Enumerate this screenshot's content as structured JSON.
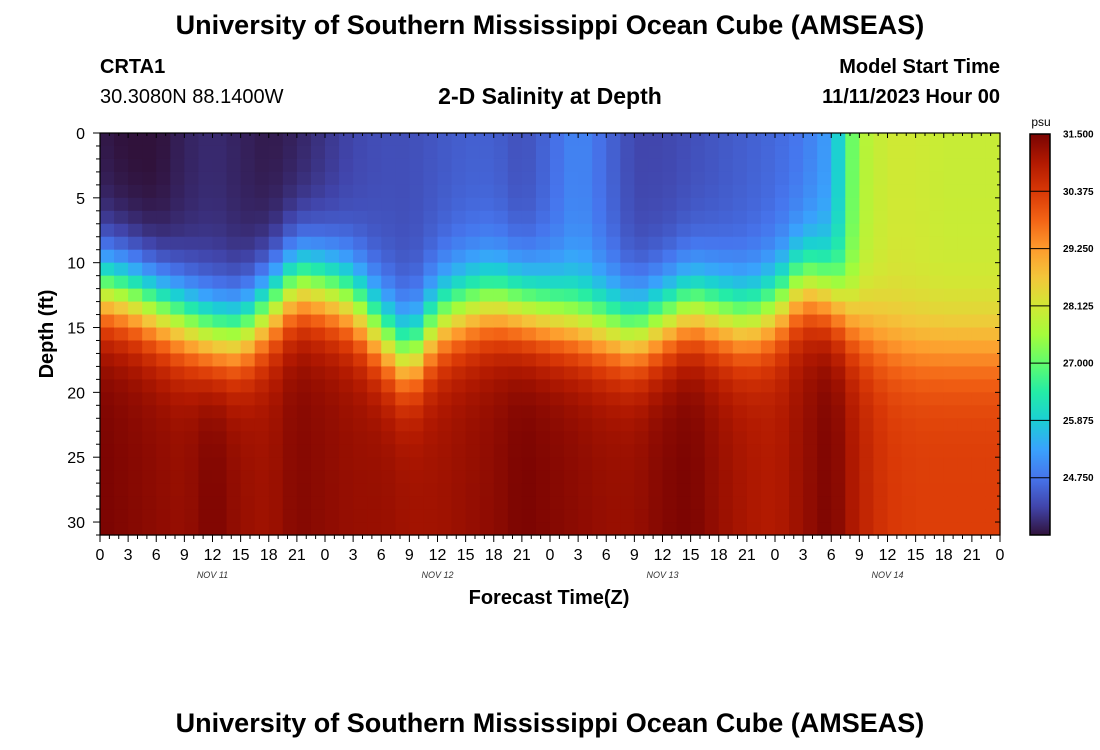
{
  "header": {
    "title": "University of Southern Mississippi Ocean Cube (AMSEAS)",
    "station_id": "CRTA1",
    "station_coords": "30.3080N  88.1400W",
    "plot_title": "2-D Salinity at Depth",
    "model_start_label": "Model Start Time",
    "model_start_value": "11/11/2023 Hour 00"
  },
  "footer": {
    "title": "University of Southern Mississippi Ocean Cube (AMSEAS)"
  },
  "chart_data": {
    "type": "heatmap",
    "title": "2-D Salinity at Depth",
    "xlabel": "Forecast Time(Z)",
    "ylabel": "Depth (ft)",
    "x_unit": "forecast hour",
    "x_range": [
      0,
      96
    ],
    "x_tick_values": [
      0,
      3,
      6,
      9,
      12,
      15,
      18,
      21,
      24,
      27,
      30,
      33,
      36,
      39,
      42,
      45,
      48,
      51,
      54,
      57,
      60,
      63,
      66,
      69,
      72,
      75,
      78,
      81,
      84,
      87,
      90,
      93,
      96
    ],
    "x_tick_labels": [
      "0",
      "3",
      "6",
      "9",
      "12",
      "15",
      "18",
      "21",
      "0",
      "3",
      "6",
      "9",
      "12",
      "15",
      "18",
      "21",
      "0",
      "3",
      "6",
      "9",
      "12",
      "15",
      "18",
      "21",
      "0",
      "3",
      "6",
      "9",
      "12",
      "15",
      "18",
      "21",
      "0"
    ],
    "day_labels": [
      {
        "hour": 12,
        "label": "NOV 11"
      },
      {
        "hour": 36,
        "label": "NOV 12"
      },
      {
        "hour": 60,
        "label": "NOV 13"
      },
      {
        "hour": 84,
        "label": "NOV 14"
      }
    ],
    "y_range": [
      0,
      31
    ],
    "y_inverted": true,
    "y_ticks": [
      0,
      5,
      10,
      15,
      20,
      25,
      30
    ],
    "colorbar": {
      "unit": "psu",
      "min": 23.625,
      "max": 31.5,
      "tick_values": [
        31.5,
        30.375,
        29.25,
        28.125,
        27.0,
        25.875,
        24.75
      ],
      "tick_labels": [
        "31.500",
        "30.375",
        "29.250",
        "28.125",
        "27.000",
        "25.875",
        "24.750"
      ],
      "colors": [
        "#30123b",
        "#4145ab",
        "#4675ed",
        "#39a2fc",
        "#1bcfd4",
        "#24eca6",
        "#61fc6c",
        "#a4fc3b",
        "#d1e834",
        "#f3c63a",
        "#fe9b2d",
        "#f36315",
        "#d93806",
        "#b11901",
        "#7a0402"
      ]
    },
    "depth_levels": [
      0,
      1,
      2,
      3,
      4,
      5,
      6,
      7,
      8,
      9,
      10,
      11,
      12,
      13,
      14,
      15,
      16,
      17,
      18,
      19,
      20,
      21,
      22,
      23,
      24,
      25,
      26,
      27,
      28,
      29,
      30,
      31
    ],
    "time_nodes": [
      0,
      3,
      6,
      9,
      12,
      15,
      18,
      21,
      24,
      27,
      30,
      33,
      36,
      39,
      42,
      45,
      48,
      51,
      54,
      57,
      60,
      63,
      66,
      69,
      72,
      75,
      78,
      81,
      84,
      87,
      90,
      93,
      96
    ],
    "halocline_depth_ft": [
      12,
      12.5,
      13.5,
      14.5,
      15.5,
      15.5,
      13.5,
      11.5,
      12,
      13,
      15.5,
      17.5,
      14.5,
      13.5,
      13,
      13.5,
      14,
      14.5,
      15,
      15.5,
      14.5,
      13.5,
      14,
      14.5,
      13.5,
      11.5,
      12.5,
      15,
      16,
      16.5,
      16.5,
      16.5,
      16.5
    ],
    "surface_salinity_psu": [
      23.7,
      23.6,
      23.6,
      23.8,
      23.9,
      23.8,
      23.7,
      23.8,
      24.0,
      24.2,
      24.3,
      24.3,
      24.4,
      24.5,
      24.5,
      24.3,
      24.6,
      25.0,
      24.6,
      24.2,
      24.2,
      24.3,
      24.4,
      24.5,
      24.6,
      24.8,
      25.3,
      27.7,
      28.1,
      28.1,
      28.0,
      28.0,
      28.0
    ],
    "bottom_salinity_psu": [
      31.5,
      31.4,
      31.3,
      31.2,
      31.5,
      31.2,
      31.1,
      31.4,
      31.3,
      31.2,
      31.2,
      31.1,
      31.1,
      31.2,
      31.3,
      31.5,
      31.4,
      31.3,
      31.2,
      31.2,
      31.4,
      31.5,
      31.2,
      31.0,
      30.9,
      31.2,
      31.5,
      30.8,
      30.4,
      30.3,
      30.3,
      30.3,
      30.3
    ]
  }
}
